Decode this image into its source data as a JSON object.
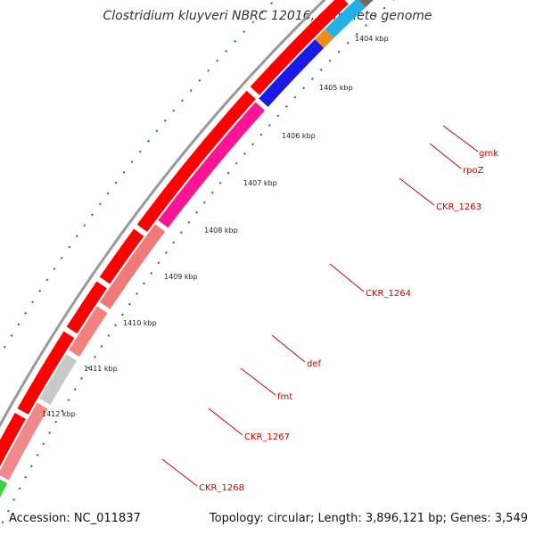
{
  "title": "Clostridium kluyveri NBRC 12016, complete genome",
  "accession": "Accession: NC_011837",
  "topology": "Topology: circular; Length: 3,896,121 bp; Genes: 3,549",
  "ticks": [
    "1404 kbp",
    "1405 kbp",
    "1406 kbp",
    "1407 kbp",
    "1408 kbp",
    "1409 kbp",
    "1410 kbp",
    "1411 kbp",
    "1412 kbp"
  ],
  "genes": [
    {
      "name": "gmk",
      "color": "#22b0e6"
    },
    {
      "name": "rpoZ",
      "color": "#f28c18"
    },
    {
      "name": "CKR_1263",
      "color": "#1a1ae8"
    },
    {
      "name": "CKR_1264",
      "color": "#ff1493"
    },
    {
      "name": "def",
      "color": "#f07a7a"
    },
    {
      "name": "fmt",
      "color": "#f48080"
    },
    {
      "name": "CKR_1267",
      "color": "#c8c8c8"
    },
    {
      "name": "CKR_1268",
      "color": "#f08a8a"
    }
  ],
  "colors": {
    "forward_cds": "#ff0000",
    "backbone": "#999999",
    "tick": "#228b22",
    "unlabeled_gene": "#6a6a6a",
    "rna": "#3fcf3f",
    "label": "#d00000"
  }
}
